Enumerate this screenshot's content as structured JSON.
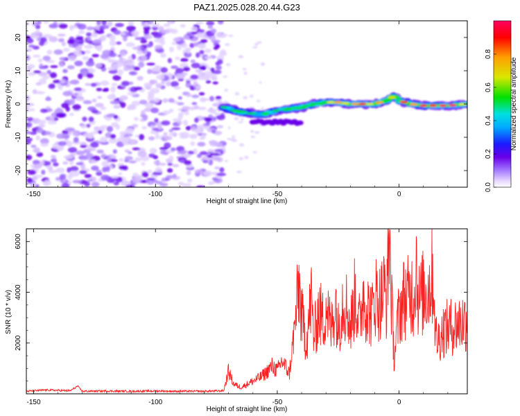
{
  "title": "PAZ1.2025.028.20.44.G23",
  "chart_data": [
    {
      "type": "heatmap",
      "xlabel": "Height of straight line (km)",
      "ylabel": "Frequency (Hz)",
      "xlim": [
        -153,
        28
      ],
      "ylim": [
        -25,
        25
      ],
      "xticks": [
        -150,
        -100,
        -50,
        0
      ],
      "yticks": [
        -20,
        -10,
        0,
        10,
        20
      ],
      "colorbar": {
        "label": "Normalized spectral amplitude",
        "range": [
          0,
          1
        ],
        "ticks": [
          0.0,
          0.2,
          0.4,
          0.6,
          0.8
        ],
        "colormap": [
          "#ffffff",
          "#e6d4ff",
          "#a37cff",
          "#6a00e8",
          "#1a1aff",
          "#00aaff",
          "#00e0e0",
          "#00e000",
          "#d8e800",
          "#ffa000",
          "#ff0000",
          "#ff0060"
        ]
      },
      "structure": {
        "noise_region_x": [
          -153,
          -72
        ],
        "signal_track": [
          {
            "x": -72,
            "freq": -1.0
          },
          {
            "x": -65,
            "freq": -2.5
          },
          {
            "x": -60,
            "freq": -3.0
          },
          {
            "x": -55,
            "freq": -3.0
          },
          {
            "x": -50,
            "freq": -2.0
          },
          {
            "x": -45,
            "freq": -1.5
          },
          {
            "x": -40,
            "freq": -1.0
          },
          {
            "x": -35,
            "freq": 0.0
          },
          {
            "x": -30,
            "freq": 0.5
          },
          {
            "x": -25,
            "freq": 0.5
          },
          {
            "x": -20,
            "freq": 0.0
          },
          {
            "x": -15,
            "freq": 0.0
          },
          {
            "x": -10,
            "freq": 0.0
          },
          {
            "x": -5,
            "freq": 1.0
          },
          {
            "x": -2,
            "freq": 2.5
          },
          {
            "x": 0,
            "freq": 1.0
          },
          {
            "x": 5,
            "freq": 0.0
          },
          {
            "x": 10,
            "freq": -0.5
          },
          {
            "x": 20,
            "freq": -0.5
          },
          {
            "x": 28,
            "freq": 0.0
          }
        ]
      }
    },
    {
      "type": "line",
      "xlabel": "Height of straight line (km)",
      "ylabel": "SNR (10 * v/v)",
      "xlim": [
        -153,
        28
      ],
      "ylim": [
        0,
        6500
      ],
      "xticks": [
        -150,
        -100,
        -50,
        0
      ],
      "yticks": [
        2000,
        4000,
        6000
      ],
      "series": [
        {
          "color": "#ff2020",
          "x": [
            -153,
            -145,
            -135,
            -132,
            -130,
            -120,
            -110,
            -100,
            -90,
            -80,
            -72,
            -70,
            -68,
            -65,
            -60,
            -57,
            -55,
            -52,
            -50,
            -48,
            -45,
            -43,
            -41,
            -40,
            -38,
            -36,
            -35,
            -33,
            -31,
            -30,
            -28,
            -26,
            -25,
            -23,
            -21,
            -20,
            -18,
            -16,
            -15,
            -13,
            -11,
            -10,
            -8,
            -6,
            -5,
            -4,
            -3,
            -2,
            -1,
            0,
            2,
            4,
            5,
            6,
            7,
            8,
            10,
            12,
            14,
            15,
            16,
            18,
            20,
            23,
            25,
            28
          ],
          "y": [
            100,
            150,
            120,
            300,
            100,
            110,
            100,
            110,
            100,
            100,
            120,
            900,
            400,
            250,
            500,
            650,
            800,
            1100,
            900,
            1300,
            800,
            2500,
            4300,
            3000,
            2100,
            3800,
            2200,
            3300,
            2800,
            3600,
            2500,
            3700,
            2500,
            3800,
            3300,
            2600,
            3900,
            2600,
            4000,
            3400,
            3100,
            4000,
            3600,
            4100,
            3700,
            6500,
            3400,
            1400,
            2400,
            3200,
            3800,
            3800,
            4100,
            3700,
            5400,
            3600,
            4000,
            4100,
            4800,
            2300,
            2100,
            2500,
            2600,
            2700,
            2800,
            2900
          ]
        }
      ]
    }
  ]
}
